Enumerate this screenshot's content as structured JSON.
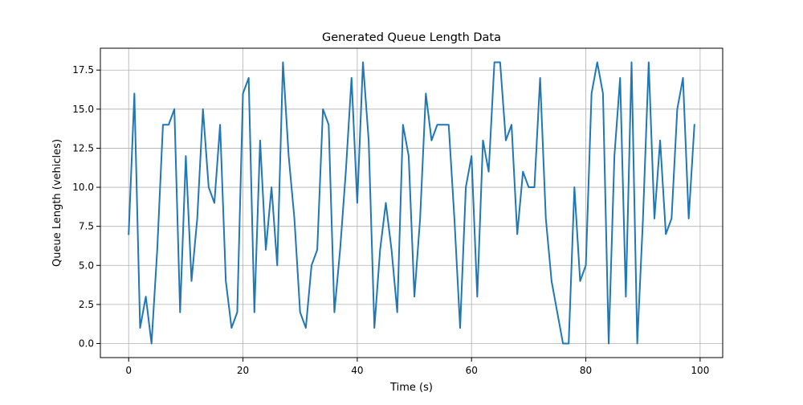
{
  "chart_data": {
    "type": "line",
    "title": "Generated Queue Length Data",
    "xlabel": "Time (s)",
    "ylabel": "Queue Length (vehicles)",
    "xlim": [
      -4.95,
      103.95
    ],
    "ylim": [
      -0.9,
      18.9
    ],
    "xticks": [
      0,
      20,
      40,
      60,
      80,
      100
    ],
    "yticks": [
      0.0,
      2.5,
      5.0,
      7.5,
      10.0,
      12.5,
      15.0,
      17.5
    ],
    "xtick_labels": [
      "0",
      "20",
      "40",
      "60",
      "80",
      "100"
    ],
    "ytick_labels": [
      "0.0",
      "2.5",
      "5.0",
      "7.5",
      "10.0",
      "12.5",
      "15.0",
      "17.5"
    ],
    "grid": true,
    "series": [
      {
        "color": "#1f77b4",
        "x": [
          0,
          1,
          2,
          3,
          4,
          5,
          6,
          7,
          8,
          9,
          10,
          11,
          12,
          13,
          14,
          15,
          16,
          17,
          18,
          19,
          20,
          21,
          22,
          23,
          24,
          25,
          26,
          27,
          28,
          29,
          30,
          31,
          32,
          33,
          34,
          35,
          36,
          37,
          38,
          39,
          40,
          41,
          42,
          43,
          44,
          45,
          46,
          47,
          48,
          49,
          50,
          51,
          52,
          53,
          54,
          55,
          56,
          57,
          58,
          59,
          60,
          61,
          62,
          63,
          64,
          65,
          66,
          67,
          68,
          69,
          70,
          71,
          72,
          73,
          74,
          75,
          76,
          77,
          78,
          79,
          80,
          81,
          82,
          83,
          84,
          85,
          86,
          87,
          88,
          89,
          90,
          91,
          92,
          93,
          94,
          95,
          96,
          97,
          98,
          99
        ],
        "values": [
          7,
          16,
          1,
          3,
          0,
          6,
          14,
          14,
          15,
          2,
          12,
          4,
          8,
          15,
          10,
          9,
          14,
          4,
          1,
          2,
          16,
          17,
          2,
          13,
          6,
          10,
          5,
          18,
          12,
          8,
          2,
          1,
          5,
          6,
          15,
          14,
          2,
          6,
          11,
          17,
          9,
          18,
          13,
          1,
          6,
          9,
          6,
          2,
          14,
          12,
          3,
          8,
          16,
          13,
          14,
          14,
          14,
          8,
          1,
          10,
          12,
          3,
          13,
          11,
          18,
          18,
          13,
          14,
          7,
          11,
          10,
          10,
          17,
          8,
          4,
          2,
          0,
          0,
          10,
          4,
          5,
          16,
          18,
          16,
          0,
          12,
          17,
          3,
          18,
          0,
          8,
          18,
          8,
          13,
          7,
          8,
          15,
          17,
          8,
          14
        ]
      }
    ]
  }
}
